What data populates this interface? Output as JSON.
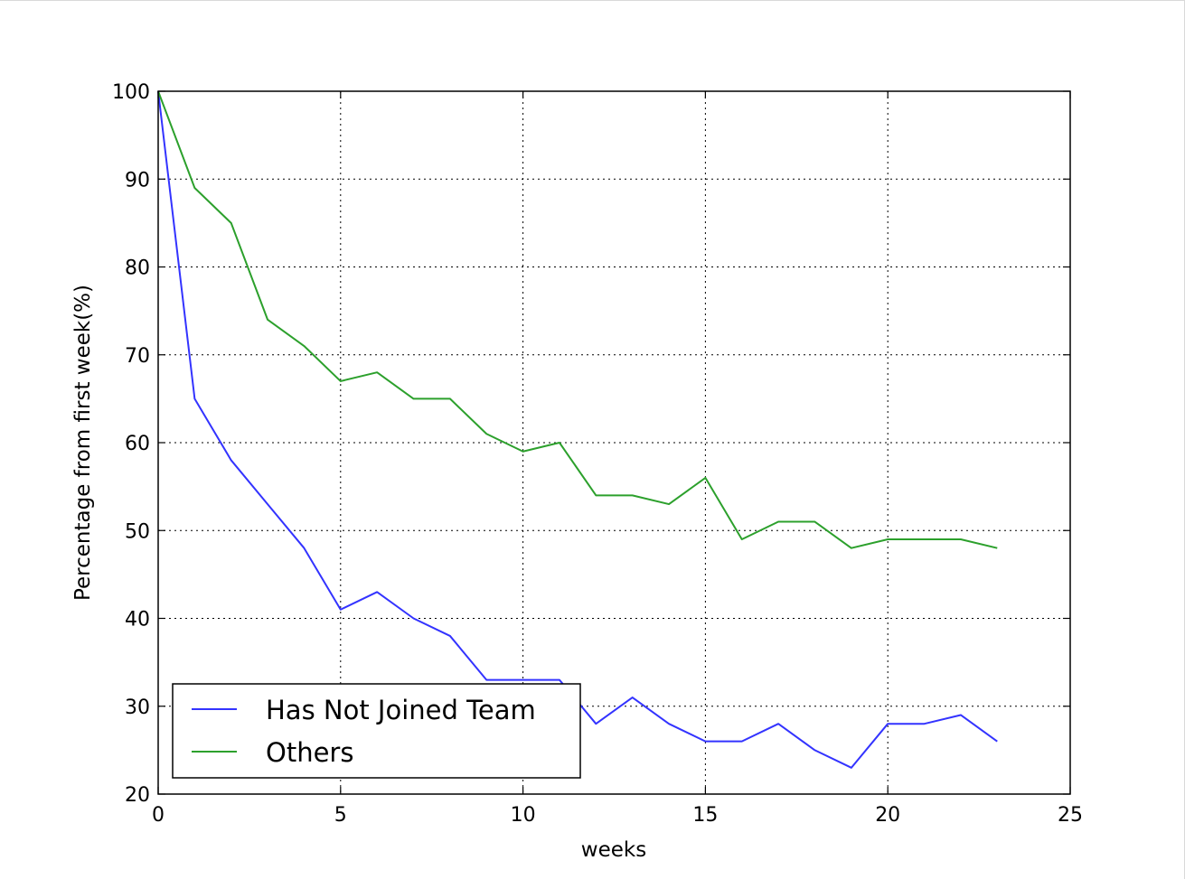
{
  "chart_data": {
    "type": "line",
    "xlabel": "weeks",
    "ylabel": "Percentage from first week(%)",
    "xlim": [
      0,
      25
    ],
    "ylim": [
      20,
      100
    ],
    "xticks": [
      0,
      5,
      10,
      15,
      20,
      25
    ],
    "yticks": [
      20,
      30,
      40,
      50,
      60,
      70,
      80,
      90,
      100
    ],
    "grid": true,
    "legend_position": "lower-left",
    "x": [
      0,
      1,
      2,
      3,
      4,
      5,
      6,
      7,
      8,
      9,
      10,
      11,
      12,
      13,
      14,
      15,
      16,
      17,
      18,
      19,
      20,
      21,
      22,
      23
    ],
    "series": [
      {
        "name": "Has Not Joined Team",
        "color": "#3333ff",
        "values": [
          100,
          65,
          58,
          53,
          48,
          41,
          43,
          40,
          38,
          33,
          33,
          33,
          28,
          31,
          28,
          26,
          26,
          28,
          25,
          23,
          28,
          28,
          29,
          26
        ]
      },
      {
        "name": "Others",
        "color": "#2ca02c",
        "values": [
          100,
          89,
          85,
          74,
          71,
          67,
          68,
          65,
          65,
          61,
          59,
          60,
          54,
          54,
          53,
          56,
          49,
          51,
          51,
          48,
          49,
          49,
          49,
          48
        ]
      }
    ]
  }
}
